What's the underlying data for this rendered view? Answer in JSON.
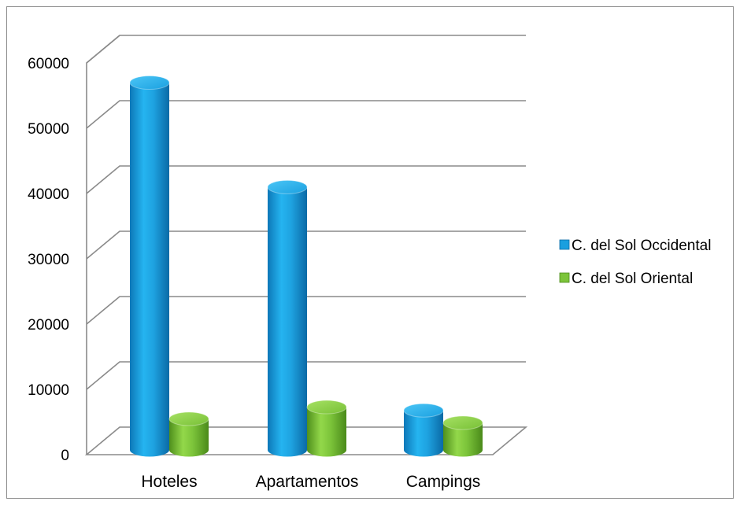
{
  "chart_data": {
    "type": "bar",
    "title": "",
    "xlabel": "",
    "ylabel": "",
    "categories": [
      "Hoteles",
      "Apartamentos",
      "Campings"
    ],
    "series": [
      {
        "name": "C. del Sol Occidental",
        "color": "#1a9fdf",
        "values": [
          56500,
          40500,
          6300
        ]
      },
      {
        "name": "C. del Sol Oriental",
        "color": "#7cc43a",
        "values": [
          5000,
          6800,
          4400
        ]
      }
    ],
    "ylim": [
      0,
      60000
    ],
    "yticks": [
      "0",
      "10000",
      "20000",
      "30000",
      "40000",
      "50000",
      "60000"
    ],
    "grid": true,
    "legend_position": "right",
    "style": "3d-cylinder"
  }
}
